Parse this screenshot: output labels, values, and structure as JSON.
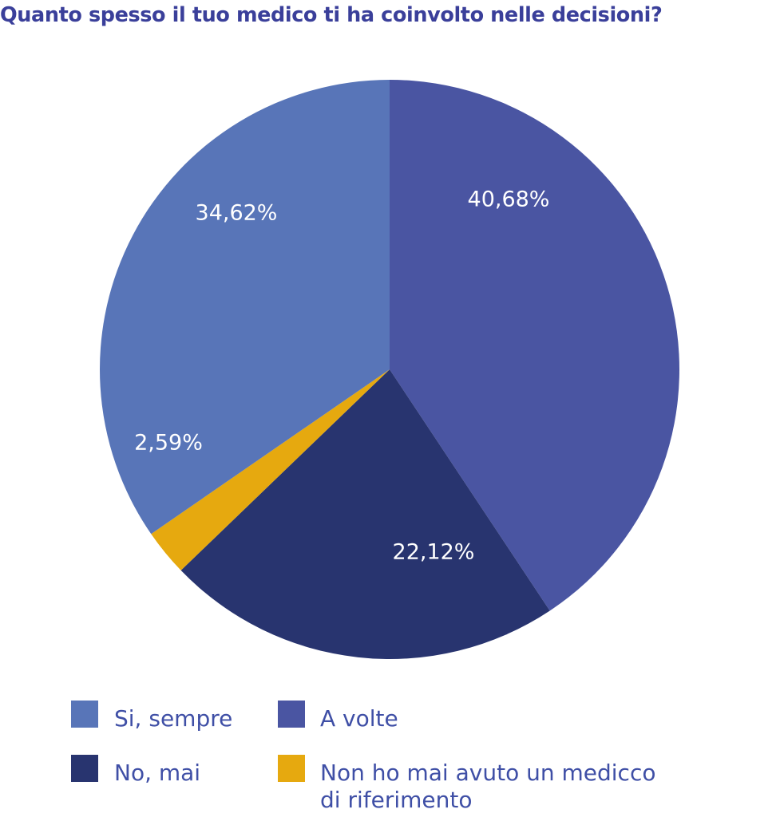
{
  "chart_data": {
    "type": "pie",
    "title": "Quanto spesso il tuo medico ti ha coinvolto nelle decisioni?",
    "slices": [
      {
        "label": "A volte",
        "value": 40.68,
        "value_label": "40,68%",
        "color": "#4a55a2"
      },
      {
        "label": "No, mai",
        "value": 22.12,
        "value_label": "22,12%",
        "color": "#28346f"
      },
      {
        "label": "Non ho mai avuto un medicco di riferimento",
        "value": 2.59,
        "value_label": "2,59%",
        "color": "#e6a90f"
      },
      {
        "label": "Si, sempre",
        "value": 34.62,
        "value_label": "34,62%",
        "color": "#5875b8"
      }
    ],
    "start_angle": "12 o'clock",
    "direction": "clockwise",
    "legend_position": "bottom",
    "legend": [
      {
        "label": "Si, sempre",
        "color": "#5875b8"
      },
      {
        "label": "A volte",
        "color": "#4a55a2"
      },
      {
        "label": "No, mai",
        "color": "#28346f"
      },
      {
        "label": "Non ho mai avuto un medicco di riferimento",
        "label_line1": "Non ho mai avuto un medicco",
        "label_line2": "di riferimento",
        "color": "#e6a90f"
      }
    ]
  }
}
